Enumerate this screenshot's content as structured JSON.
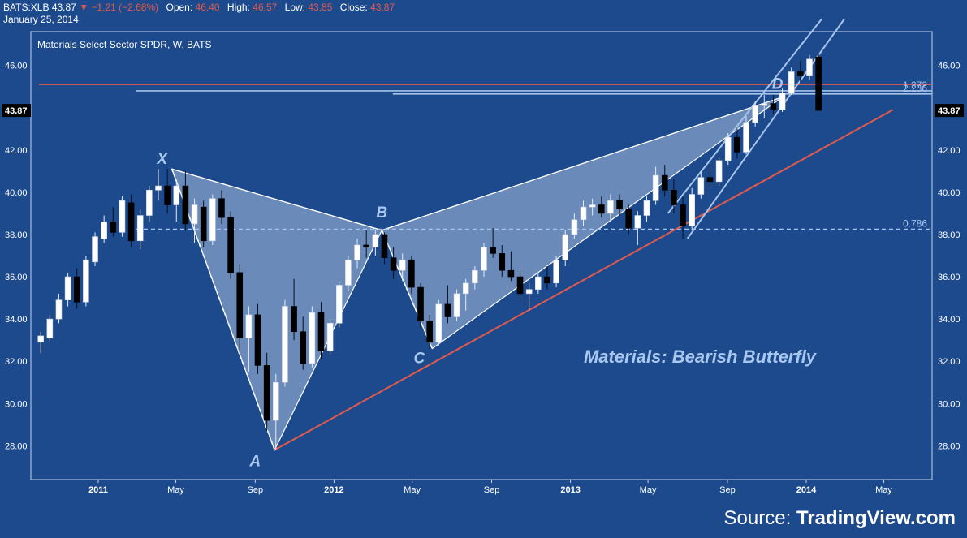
{
  "header": {
    "symbol": "BATS:XLB",
    "last": "43.87",
    "down_arrow": "▼",
    "change": "−1.21 (−2.68%)",
    "open_label": "Open:",
    "open": "46.40",
    "high_label": "High:",
    "high": "46.57",
    "low_label": "Low:",
    "low": "43.85",
    "close_label": "Close:",
    "close": "43.87",
    "date": "January 25, 2014"
  },
  "source": {
    "prefix": "Source: ",
    "brand": "TradingView.com"
  },
  "colors": {
    "background": "#1d4a8c",
    "plot_border": "#c8d4e6",
    "up_candle": "#ffffff",
    "down_candle": "#000000",
    "pattern_fill": "#a9bfe0",
    "pattern_line": "#ffffff",
    "trend_red": "#e05a4e",
    "fib_blue": "#a7c4ec",
    "label_blue": "#a8c8f0"
  },
  "chart_data": {
    "type": "candlestick",
    "title": "Materials Select Sector SPDR, W, BATS",
    "annotation": "Materials: Bearish Butterfly",
    "ylim": [
      26.4,
      47.6
    ],
    "y_ticks": [
      28.0,
      30.0,
      32.0,
      34.0,
      36.0,
      38.0,
      40.0,
      42.0,
      44.0,
      46.0
    ],
    "x_ticks": [
      {
        "label": "2011",
        "date": "2011-01-01"
      },
      {
        "label": "May",
        "date": "2011-05-01"
      },
      {
        "label": "Sep",
        "date": "2011-09-01"
      },
      {
        "label": "2012",
        "date": "2012-01-01"
      },
      {
        "label": "May",
        "date": "2012-05-01"
      },
      {
        "label": "Sep",
        "date": "2012-09-01"
      },
      {
        "label": "2013",
        "date": "2013-01-01"
      },
      {
        "label": "May",
        "date": "2013-05-01"
      },
      {
        "label": "Sep",
        "date": "2013-09-01"
      },
      {
        "label": "2014",
        "date": "2014-01-01"
      },
      {
        "label": "May",
        "date": "2014-05-01"
      }
    ],
    "last_price_label": "43.87",
    "pattern_points": [
      {
        "name": "X",
        "date": "2011-04-25",
        "price": 41.1
      },
      {
        "name": "A",
        "date": "2011-10-01",
        "price": 27.8
      },
      {
        "name": "B",
        "date": "2012-03-15",
        "price": 38.2
      },
      {
        "name": "C",
        "date": "2012-06-01",
        "price": 32.6
      },
      {
        "name": "D",
        "date": "2013-11-25",
        "price": 44.5
      }
    ],
    "horizontal_lines": [
      {
        "price": 45.1,
        "color": "red",
        "from": "2010-10-01"
      },
      {
        "price": 44.8,
        "label": "1.272",
        "color": "blue",
        "from": "2011-03-01"
      },
      {
        "price": 44.65,
        "label": "2.236",
        "color": "blue",
        "from": "2012-04-01"
      },
      {
        "price": 38.25,
        "label": "0.786",
        "color": "blue",
        "dashed": true,
        "from": "2011-03-01"
      }
    ],
    "trendlines": [
      {
        "color": "red",
        "from": {
          "date": "2011-10-01",
          "price": 27.8
        },
        "to": {
          "date": "2014-05-15",
          "price": 43.9
        }
      },
      {
        "color": "blue",
        "from": {
          "date": "2013-07-01",
          "price": 37.8
        },
        "to": {
          "date": "2014-03-01",
          "price": 48.2
        }
      },
      {
        "color": "blue",
        "from": {
          "date": "2013-06-01",
          "price": 39.0
        },
        "to": {
          "date": "2014-01-25",
          "price": 48.2
        }
      }
    ],
    "candles": [
      {
        "d": "2010-10-04",
        "o": 32.9,
        "h": 33.4,
        "l": 32.4,
        "c": 33.2
      },
      {
        "d": "2010-10-18",
        "o": 33.1,
        "h": 34.2,
        "l": 32.9,
        "c": 34.0
      },
      {
        "d": "2010-11-01",
        "o": 34.0,
        "h": 35.2,
        "l": 33.8,
        "c": 34.9
      },
      {
        "d": "2010-11-15",
        "o": 34.9,
        "h": 36.2,
        "l": 34.6,
        "c": 36.0
      },
      {
        "d": "2010-11-29",
        "o": 36.0,
        "h": 36.4,
        "l": 34.5,
        "c": 34.8
      },
      {
        "d": "2010-12-13",
        "o": 34.8,
        "h": 37.0,
        "l": 34.6,
        "c": 36.8
      },
      {
        "d": "2010-12-27",
        "o": 36.7,
        "h": 38.1,
        "l": 36.5,
        "c": 37.9
      },
      {
        "d": "2011-01-10",
        "o": 37.8,
        "h": 38.9,
        "l": 37.6,
        "c": 38.6
      },
      {
        "d": "2011-01-24",
        "o": 38.6,
        "h": 39.3,
        "l": 37.9,
        "c": 38.1
      },
      {
        "d": "2011-02-07",
        "o": 38.1,
        "h": 39.8,
        "l": 37.9,
        "c": 39.6
      },
      {
        "d": "2011-02-21",
        "o": 39.5,
        "h": 39.9,
        "l": 37.4,
        "c": 37.7
      },
      {
        "d": "2011-03-07",
        "o": 37.7,
        "h": 39.2,
        "l": 37.3,
        "c": 38.9
      },
      {
        "d": "2011-03-21",
        "o": 38.9,
        "h": 40.3,
        "l": 38.6,
        "c": 40.1
      },
      {
        "d": "2011-04-04",
        "o": 40.1,
        "h": 41.1,
        "l": 39.6,
        "c": 40.3
      },
      {
        "d": "2011-04-18",
        "o": 40.3,
        "h": 41.1,
        "l": 39.0,
        "c": 39.4
      },
      {
        "d": "2011-05-02",
        "o": 39.4,
        "h": 40.6,
        "l": 38.6,
        "c": 40.3
      },
      {
        "d": "2011-05-16",
        "o": 40.3,
        "h": 41.0,
        "l": 38.2,
        "c": 38.5
      },
      {
        "d": "2011-05-30",
        "o": 38.5,
        "h": 39.7,
        "l": 37.6,
        "c": 39.4
      },
      {
        "d": "2011-06-13",
        "o": 39.3,
        "h": 39.6,
        "l": 37.4,
        "c": 37.7
      },
      {
        "d": "2011-06-27",
        "o": 37.7,
        "h": 39.9,
        "l": 37.5,
        "c": 39.7
      },
      {
        "d": "2011-07-11",
        "o": 39.7,
        "h": 40.1,
        "l": 38.5,
        "c": 38.8
      },
      {
        "d": "2011-07-25",
        "o": 38.8,
        "h": 39.1,
        "l": 35.9,
        "c": 36.2
      },
      {
        "d": "2011-08-08",
        "o": 36.2,
        "h": 36.6,
        "l": 32.4,
        "c": 33.1
      },
      {
        "d": "2011-08-22",
        "o": 33.1,
        "h": 34.6,
        "l": 31.5,
        "c": 34.2
      },
      {
        "d": "2011-09-05",
        "o": 34.2,
        "h": 34.7,
        "l": 31.4,
        "c": 31.8
      },
      {
        "d": "2011-09-19",
        "o": 31.8,
        "h": 32.4,
        "l": 28.7,
        "c": 29.2
      },
      {
        "d": "2011-10-03",
        "o": 29.2,
        "h": 31.4,
        "l": 27.8,
        "c": 31.0
      },
      {
        "d": "2011-10-17",
        "o": 31.0,
        "h": 34.9,
        "l": 30.8,
        "c": 34.6
      },
      {
        "d": "2011-10-31",
        "o": 34.6,
        "h": 35.9,
        "l": 33.0,
        "c": 33.4
      },
      {
        "d": "2011-11-14",
        "o": 33.4,
        "h": 34.1,
        "l": 31.6,
        "c": 31.9
      },
      {
        "d": "2011-11-28",
        "o": 31.9,
        "h": 34.6,
        "l": 31.7,
        "c": 34.3
      },
      {
        "d": "2011-12-12",
        "o": 34.3,
        "h": 34.8,
        "l": 32.1,
        "c": 32.5
      },
      {
        "d": "2011-12-26",
        "o": 32.5,
        "h": 34.0,
        "l": 32.3,
        "c": 33.8
      },
      {
        "d": "2012-01-09",
        "o": 33.8,
        "h": 35.8,
        "l": 33.6,
        "c": 35.6
      },
      {
        "d": "2012-01-23",
        "o": 35.6,
        "h": 37.0,
        "l": 35.3,
        "c": 36.8
      },
      {
        "d": "2012-02-06",
        "o": 36.8,
        "h": 37.8,
        "l": 36.4,
        "c": 37.5
      },
      {
        "d": "2012-02-20",
        "o": 37.5,
        "h": 38.2,
        "l": 36.9,
        "c": 37.4
      },
      {
        "d": "2012-03-05",
        "o": 37.4,
        "h": 38.2,
        "l": 37.0,
        "c": 38.0
      },
      {
        "d": "2012-03-19",
        "o": 38.0,
        "h": 38.1,
        "l": 36.6,
        "c": 36.9
      },
      {
        "d": "2012-04-02",
        "o": 36.9,
        "h": 37.4,
        "l": 35.9,
        "c": 36.3
      },
      {
        "d": "2012-04-16",
        "o": 36.3,
        "h": 37.1,
        "l": 35.8,
        "c": 36.8
      },
      {
        "d": "2012-04-30",
        "o": 36.8,
        "h": 37.0,
        "l": 35.2,
        "c": 35.5
      },
      {
        "d": "2012-05-14",
        "o": 35.5,
        "h": 35.7,
        "l": 33.6,
        "c": 33.9
      },
      {
        "d": "2012-05-28",
        "o": 33.9,
        "h": 34.2,
        "l": 32.6,
        "c": 32.9
      },
      {
        "d": "2012-06-11",
        "o": 32.9,
        "h": 34.9,
        "l": 32.7,
        "c": 34.7
      },
      {
        "d": "2012-06-25",
        "o": 34.7,
        "h": 35.6,
        "l": 33.8,
        "c": 34.1
      },
      {
        "d": "2012-07-09",
        "o": 34.1,
        "h": 35.4,
        "l": 33.9,
        "c": 35.2
      },
      {
        "d": "2012-07-23",
        "o": 35.2,
        "h": 35.9,
        "l": 34.4,
        "c": 35.7
      },
      {
        "d": "2012-08-06",
        "o": 35.7,
        "h": 36.5,
        "l": 35.4,
        "c": 36.3
      },
      {
        "d": "2012-08-20",
        "o": 36.3,
        "h": 37.6,
        "l": 36.0,
        "c": 37.4
      },
      {
        "d": "2012-09-03",
        "o": 37.4,
        "h": 38.3,
        "l": 36.9,
        "c": 37.1
      },
      {
        "d": "2012-09-17",
        "o": 37.1,
        "h": 37.5,
        "l": 36.0,
        "c": 36.3
      },
      {
        "d": "2012-10-01",
        "o": 36.3,
        "h": 37.2,
        "l": 35.8,
        "c": 36.0
      },
      {
        "d": "2012-10-15",
        "o": 36.0,
        "h": 36.4,
        "l": 34.8,
        "c": 35.2
      },
      {
        "d": "2012-10-29",
        "o": 35.2,
        "h": 35.7,
        "l": 34.4,
        "c": 35.4
      },
      {
        "d": "2012-11-12",
        "o": 35.4,
        "h": 36.2,
        "l": 35.2,
        "c": 36.0
      },
      {
        "d": "2012-11-26",
        "o": 36.0,
        "h": 36.5,
        "l": 35.4,
        "c": 35.7
      },
      {
        "d": "2012-12-10",
        "o": 35.7,
        "h": 37.0,
        "l": 35.5,
        "c": 36.8
      },
      {
        "d": "2012-12-24",
        "o": 36.8,
        "h": 38.2,
        "l": 36.5,
        "c": 38.0
      },
      {
        "d": "2013-01-07",
        "o": 38.0,
        "h": 39.0,
        "l": 37.8,
        "c": 38.7
      },
      {
        "d": "2013-01-21",
        "o": 38.7,
        "h": 39.6,
        "l": 38.4,
        "c": 39.3
      },
      {
        "d": "2013-02-04",
        "o": 39.3,
        "h": 39.7,
        "l": 38.9,
        "c": 39.4
      },
      {
        "d": "2013-02-18",
        "o": 39.4,
        "h": 39.8,
        "l": 38.8,
        "c": 39.0
      },
      {
        "d": "2013-03-04",
        "o": 39.0,
        "h": 39.9,
        "l": 38.7,
        "c": 39.6
      },
      {
        "d": "2013-03-18",
        "o": 39.6,
        "h": 39.9,
        "l": 38.9,
        "c": 39.2
      },
      {
        "d": "2013-04-01",
        "o": 39.2,
        "h": 39.4,
        "l": 38.0,
        "c": 38.3
      },
      {
        "d": "2013-04-15",
        "o": 38.3,
        "h": 39.1,
        "l": 37.5,
        "c": 38.9
      },
      {
        "d": "2013-04-29",
        "o": 38.9,
        "h": 39.8,
        "l": 38.6,
        "c": 39.6
      },
      {
        "d": "2013-05-13",
        "o": 39.6,
        "h": 41.2,
        "l": 39.4,
        "c": 40.8
      },
      {
        "d": "2013-05-27",
        "o": 40.8,
        "h": 41.3,
        "l": 39.8,
        "c": 40.1
      },
      {
        "d": "2013-06-10",
        "o": 40.1,
        "h": 40.6,
        "l": 39.0,
        "c": 39.4
      },
      {
        "d": "2013-06-24",
        "o": 39.4,
        "h": 39.8,
        "l": 37.8,
        "c": 38.4
      },
      {
        "d": "2013-07-08",
        "o": 38.4,
        "h": 40.2,
        "l": 38.2,
        "c": 39.9
      },
      {
        "d": "2013-07-22",
        "o": 39.9,
        "h": 41.0,
        "l": 39.7,
        "c": 40.7
      },
      {
        "d": "2013-08-05",
        "o": 40.7,
        "h": 41.3,
        "l": 40.2,
        "c": 40.5
      },
      {
        "d": "2013-08-19",
        "o": 40.5,
        "h": 41.7,
        "l": 40.3,
        "c": 41.5
      },
      {
        "d": "2013-09-02",
        "o": 41.5,
        "h": 42.8,
        "l": 41.3,
        "c": 42.6
      },
      {
        "d": "2013-09-16",
        "o": 42.6,
        "h": 43.0,
        "l": 41.6,
        "c": 41.9
      },
      {
        "d": "2013-09-30",
        "o": 41.9,
        "h": 43.6,
        "l": 41.8,
        "c": 43.3
      },
      {
        "d": "2013-10-14",
        "o": 43.3,
        "h": 44.3,
        "l": 43.1,
        "c": 44.1
      },
      {
        "d": "2013-10-28",
        "o": 44.1,
        "h": 44.6,
        "l": 43.5,
        "c": 44.2
      },
      {
        "d": "2013-11-11",
        "o": 44.2,
        "h": 44.6,
        "l": 43.7,
        "c": 43.9
      },
      {
        "d": "2013-11-25",
        "o": 43.9,
        "h": 44.9,
        "l": 43.8,
        "c": 44.7
      },
      {
        "d": "2013-12-09",
        "o": 44.7,
        "h": 45.9,
        "l": 44.6,
        "c": 45.7
      },
      {
        "d": "2013-12-23",
        "o": 45.7,
        "h": 46.2,
        "l": 45.2,
        "c": 45.5
      },
      {
        "d": "2014-01-06",
        "o": 45.5,
        "h": 46.5,
        "l": 45.3,
        "c": 46.3
      },
      {
        "d": "2014-01-20",
        "o": 46.4,
        "h": 46.57,
        "l": 43.85,
        "c": 43.87
      }
    ]
  }
}
